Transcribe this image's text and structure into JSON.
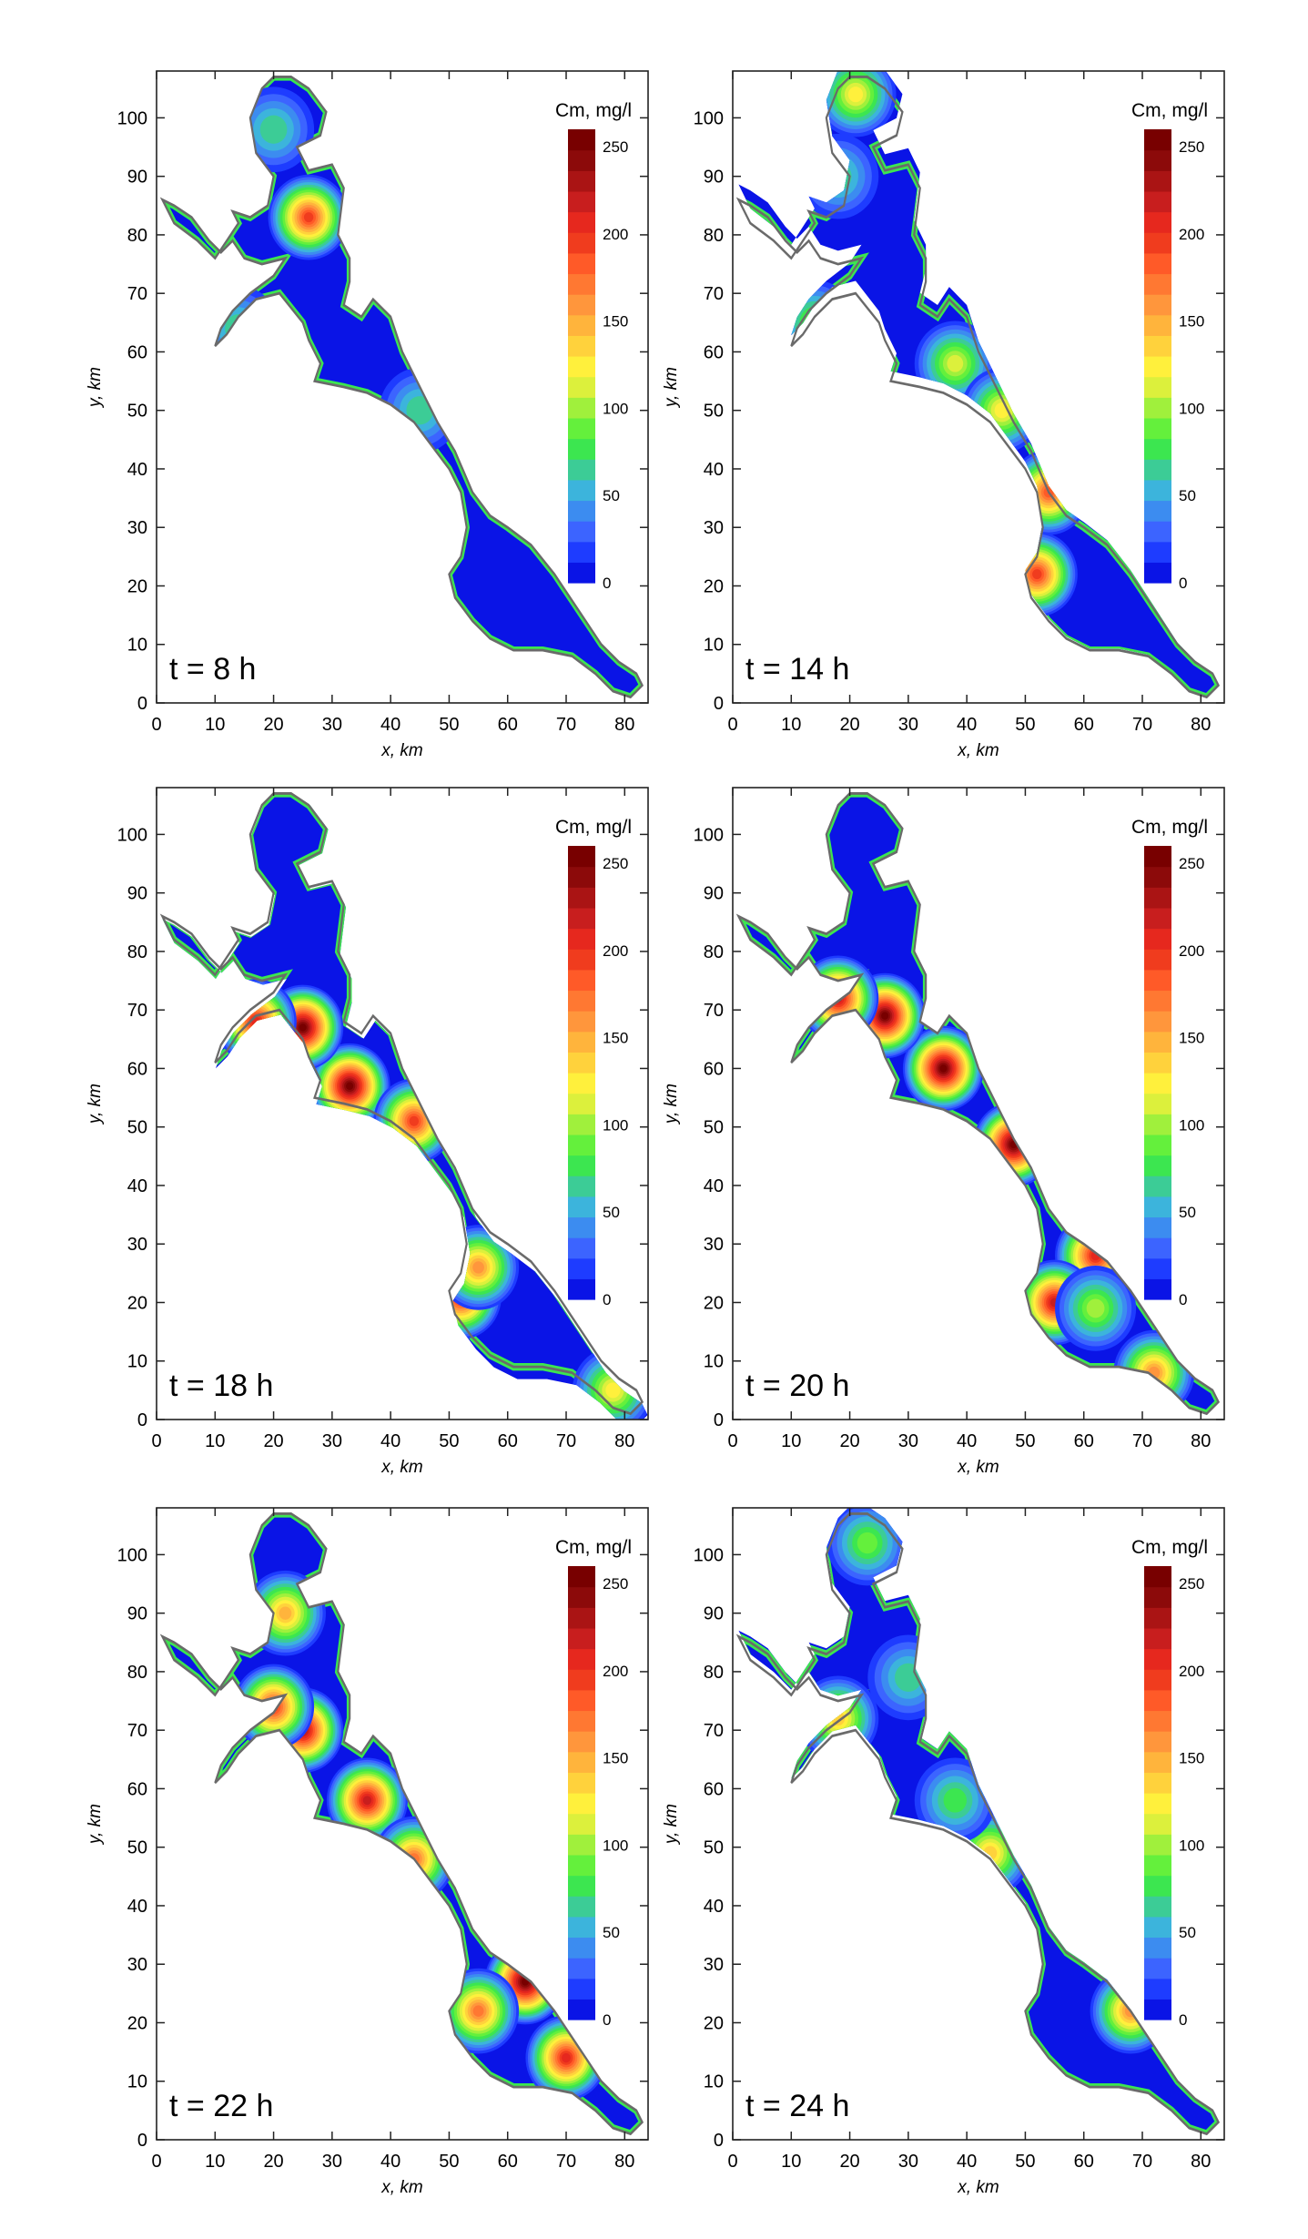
{
  "figure": {
    "caption": "",
    "colors": {
      "scale": [
        "#0a14e6",
        "#1e3cff",
        "#3c64ff",
        "#3c8cf0",
        "#3cb4dc",
        "#3ccc96",
        "#3ce650",
        "#64f03c",
        "#a0f03c",
        "#dcf03c",
        "#fff03c",
        "#ffd23c",
        "#ffb43c",
        "#ff963c",
        "#ff7832",
        "#ff5a28",
        "#f03c1e",
        "#e6281e",
        "#c81e1e",
        "#aa1414",
        "#8c0a0a",
        "#780000"
      ],
      "frame": "#222222"
    }
  },
  "chart_data": [
    {
      "type": "heatmap",
      "panel_label": "t = 8 h",
      "xlabel": "x, km",
      "ylabel": "y, km",
      "xlim": [
        0,
        84
      ],
      "ylim": [
        0,
        108
      ],
      "x_ticks": [
        0,
        10,
        20,
        30,
        40,
        50,
        60,
        70,
        80
      ],
      "y_ticks": [
        0,
        10,
        20,
        30,
        40,
        50,
        60,
        70,
        80,
        90,
        100
      ],
      "grid": false,
      "colorbar": {
        "label": "Cm, mg/l",
        "range": [
          0,
          260
        ],
        "ticks": [
          0,
          50,
          100,
          150,
          200,
          250
        ]
      },
      "hotspots": [
        {
          "x": 26,
          "y": 83,
          "value": 200
        },
        {
          "x": 20,
          "y": 98,
          "value": 60
        },
        {
          "x": 45,
          "y": 50,
          "value": 60
        },
        {
          "x": 14,
          "y": 64,
          "value": 60
        }
      ]
    },
    {
      "type": "heatmap",
      "panel_label": "t = 14 h",
      "xlabel": "x, km",
      "ylabel": "y, km",
      "xlim": [
        0,
        84
      ],
      "ylim": [
        0,
        108
      ],
      "x_ticks": [
        0,
        10,
        20,
        30,
        40,
        50,
        60,
        70,
        80
      ],
      "y_ticks": [
        0,
        10,
        20,
        30,
        40,
        50,
        60,
        70,
        80,
        90,
        100
      ],
      "grid": false,
      "colorbar": {
        "label": "Cm, mg/l",
        "range": [
          0,
          260
        ],
        "ticks": [
          0,
          50,
          100,
          150,
          200,
          250
        ]
      },
      "hotspots": [
        {
          "x": 54,
          "y": 36,
          "value": 180
        },
        {
          "x": 52,
          "y": 22,
          "value": 200
        },
        {
          "x": 38,
          "y": 58,
          "value": 110
        },
        {
          "x": 46,
          "y": 50,
          "value": 120
        },
        {
          "x": 21,
          "y": 104,
          "value": 120
        },
        {
          "x": 18,
          "y": 90,
          "value": 70
        },
        {
          "x": 14,
          "y": 65,
          "value": 90
        }
      ]
    },
    {
      "type": "heatmap",
      "panel_label": "t = 18 h",
      "xlabel": "x, km",
      "ylabel": "y, km",
      "xlim": [
        0,
        84
      ],
      "ylim": [
        0,
        108
      ],
      "x_ticks": [
        0,
        10,
        20,
        30,
        40,
        50,
        60,
        70,
        80
      ],
      "y_ticks": [
        0,
        10,
        20,
        30,
        40,
        50,
        60,
        70,
        80,
        90,
        100
      ],
      "grid": false,
      "colorbar": {
        "label": "Cm, mg/l",
        "range": [
          0,
          260
        ],
        "ticks": [
          0,
          50,
          100,
          150,
          200,
          250
        ]
      },
      "hotspots": [
        {
          "x": 33,
          "y": 57,
          "value": 250
        },
        {
          "x": 25,
          "y": 67,
          "value": 250
        },
        {
          "x": 17,
          "y": 68,
          "value": 210
        },
        {
          "x": 44,
          "y": 51,
          "value": 200
        },
        {
          "x": 52,
          "y": 21,
          "value": 210
        },
        {
          "x": 55,
          "y": 26,
          "value": 160
        },
        {
          "x": 78,
          "y": 5,
          "value": 120
        }
      ]
    },
    {
      "type": "heatmap",
      "panel_label": "t = 20 h",
      "xlabel": "x, km",
      "ylabel": "y, km",
      "xlim": [
        0,
        84
      ],
      "ylim": [
        0,
        108
      ],
      "x_ticks": [
        0,
        10,
        20,
        30,
        40,
        50,
        60,
        70,
        80
      ],
      "y_ticks": [
        0,
        10,
        20,
        30,
        40,
        50,
        60,
        70,
        80,
        90,
        100
      ],
      "grid": false,
      "colorbar": {
        "label": "Cm, mg/l",
        "range": [
          0,
          260
        ],
        "ticks": [
          0,
          50,
          100,
          150,
          200,
          250
        ]
      },
      "hotspots": [
        {
          "x": 36,
          "y": 60,
          "value": 250
        },
        {
          "x": 26,
          "y": 69,
          "value": 250
        },
        {
          "x": 18,
          "y": 72,
          "value": 220
        },
        {
          "x": 48,
          "y": 47,
          "value": 250
        },
        {
          "x": 62,
          "y": 28,
          "value": 210
        },
        {
          "x": 55,
          "y": 20,
          "value": 220
        },
        {
          "x": 62,
          "y": 19,
          "value": 100
        },
        {
          "x": 72,
          "y": 8,
          "value": 160
        }
      ]
    },
    {
      "type": "heatmap",
      "panel_label": "t = 22 h",
      "xlabel": "x, km",
      "ylabel": "y, km",
      "xlim": [
        0,
        84
      ],
      "ylim": [
        0,
        108
      ],
      "x_ticks": [
        0,
        10,
        20,
        30,
        40,
        50,
        60,
        70,
        80
      ],
      "y_ticks": [
        0,
        10,
        20,
        30,
        40,
        50,
        60,
        70,
        80,
        90,
        100
      ],
      "grid": false,
      "colorbar": {
        "label": "Cm, mg/l",
        "range": [
          0,
          260
        ],
        "ticks": [
          0,
          50,
          100,
          150,
          200,
          250
        ]
      },
      "hotspots": [
        {
          "x": 63,
          "y": 27,
          "value": 250
        },
        {
          "x": 70,
          "y": 14,
          "value": 210
        },
        {
          "x": 55,
          "y": 22,
          "value": 170
        },
        {
          "x": 36,
          "y": 58,
          "value": 220
        },
        {
          "x": 25,
          "y": 70,
          "value": 230
        },
        {
          "x": 20,
          "y": 74,
          "value": 200
        },
        {
          "x": 22,
          "y": 90,
          "value": 150
        },
        {
          "x": 44,
          "y": 48,
          "value": 170
        }
      ]
    },
    {
      "type": "heatmap",
      "panel_label": "t = 24 h",
      "xlabel": "x, km",
      "ylabel": "y, km",
      "xlim": [
        0,
        84
      ],
      "ylim": [
        0,
        108
      ],
      "x_ticks": [
        0,
        10,
        20,
        30,
        40,
        50,
        60,
        70,
        80
      ],
      "y_ticks": [
        0,
        10,
        20,
        30,
        40,
        50,
        60,
        70,
        80,
        90,
        100
      ],
      "grid": false,
      "colorbar": {
        "label": "Cm, mg/l",
        "range": [
          0,
          260
        ],
        "ticks": [
          0,
          50,
          100,
          150,
          200,
          250
        ]
      },
      "hotspots": [
        {
          "x": 68,
          "y": 22,
          "value": 160
        },
        {
          "x": 18,
          "y": 72,
          "value": 140
        },
        {
          "x": 44,
          "y": 49,
          "value": 130
        },
        {
          "x": 23,
          "y": 102,
          "value": 90
        },
        {
          "x": 30,
          "y": 79,
          "value": 70
        },
        {
          "x": 38,
          "y": 58,
          "value": 80
        }
      ]
    }
  ]
}
